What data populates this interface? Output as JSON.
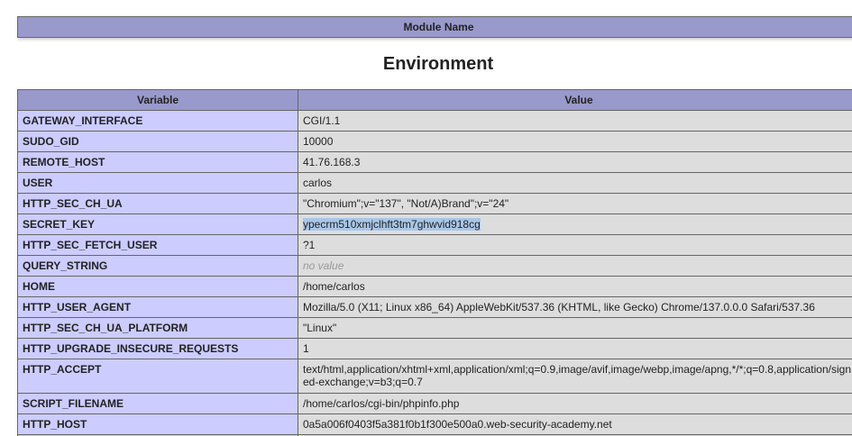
{
  "module_header": {
    "label": "Module Name"
  },
  "section": {
    "title": "Environment"
  },
  "env_table": {
    "headers": [
      "Variable",
      "Value"
    ],
    "rows": [
      {
        "variable": "GATEWAY_INTERFACE",
        "value": "CGI/1.1"
      },
      {
        "variable": "SUDO_GID",
        "value": "10000"
      },
      {
        "variable": "REMOTE_HOST",
        "value": "41.76.168.3"
      },
      {
        "variable": "USER",
        "value": "carlos"
      },
      {
        "variable": "HTTP_SEC_CH_UA",
        "value": "\"Chromium\";v=\"137\", \"Not/A)Brand\";v=\"24\""
      },
      {
        "variable": "SECRET_KEY",
        "value": "ypecrm510xmjclhft3tm7ghwvid918cg",
        "selected": true
      },
      {
        "variable": "HTTP_SEC_FETCH_USER",
        "value": "?1"
      },
      {
        "variable": "QUERY_STRING",
        "value": "no value",
        "empty": true
      },
      {
        "variable": "HOME",
        "value": "/home/carlos"
      },
      {
        "variable": "HTTP_USER_AGENT",
        "value": "Mozilla/5.0 (X11; Linux x86_64) AppleWebKit/537.36 (KHTML, like Gecko) Chrome/137.0.0.0 Safari/537.36"
      },
      {
        "variable": "HTTP_SEC_CH_UA_PLATFORM",
        "value": "\"Linux\""
      },
      {
        "variable": "HTTP_UPGRADE_INSECURE_REQUESTS",
        "value": "1"
      },
      {
        "variable": "HTTP_ACCEPT",
        "value": "text/html,application/xhtml+xml,application/xml;q=0.9,image/avif,image/webp,image/apng,*/*;q=0.8,application/signed-exchange;v=b3;q=0.7"
      },
      {
        "variable": "SCRIPT_FILENAME",
        "value": "/home/carlos/cgi-bin/phpinfo.php"
      },
      {
        "variable": "HTTP_HOST",
        "value": "0a5a006f0403f5a381f0b1f300e500a0.web-security-academy.net"
      },
      {
        "variable": "",
        "value": ""
      }
    ]
  },
  "colors": {
    "header_bg": "#9999cc",
    "variable_bg": "#ccccff",
    "value_bg": "#dddddd",
    "border": "#666666",
    "text": "#222222",
    "muted_text": "#999999",
    "selection_bg": "#a8c7e8",
    "page_bg": "#ffffff"
  }
}
